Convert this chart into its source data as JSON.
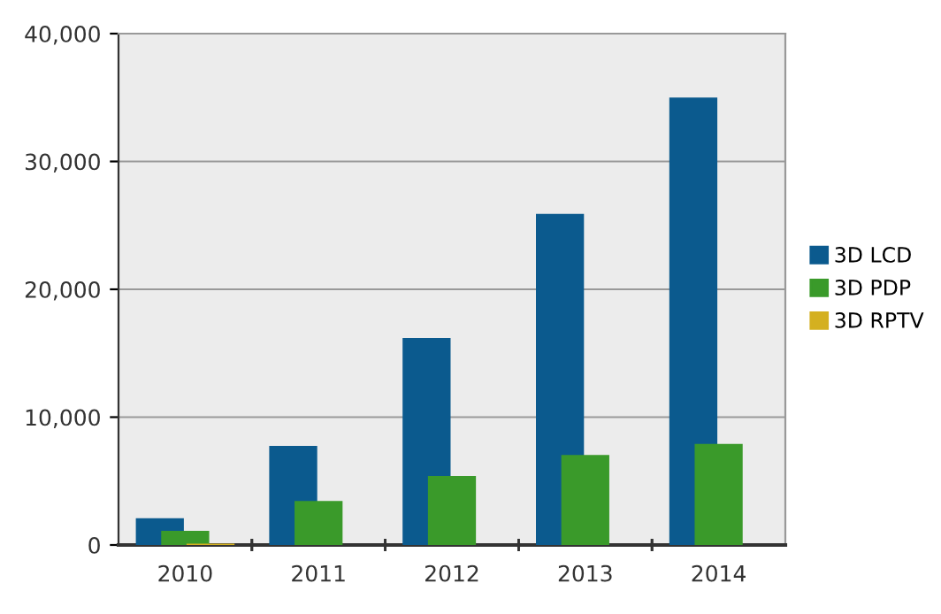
{
  "chart_data": {
    "type": "bar",
    "categories": [
      "2010",
      "2011",
      "2012",
      "2013",
      "2014"
    ],
    "series": [
      {
        "name": "3D LCD",
        "color": "#0b5a8e",
        "values": [
          2100,
          7750,
          16200,
          25900,
          35000
        ]
      },
      {
        "name": "3D PDP",
        "color": "#3a9a2a",
        "values": [
          1100,
          3450,
          5400,
          7050,
          7900
        ]
      },
      {
        "name": "3D RPTV",
        "color": "#d4b020",
        "values": [
          100,
          0,
          0,
          0,
          0
        ]
      }
    ],
    "ylim": [
      0,
      40000
    ],
    "yticks": [
      {
        "value": 0,
        "label": "0"
      },
      {
        "value": 10000,
        "label": "10,000"
      },
      {
        "value": 20000,
        "label": "20,000"
      },
      {
        "value": 30000,
        "label": "30,000"
      },
      {
        "value": 40000,
        "label": "40,000"
      }
    ],
    "grid": "y",
    "legend": "right"
  }
}
